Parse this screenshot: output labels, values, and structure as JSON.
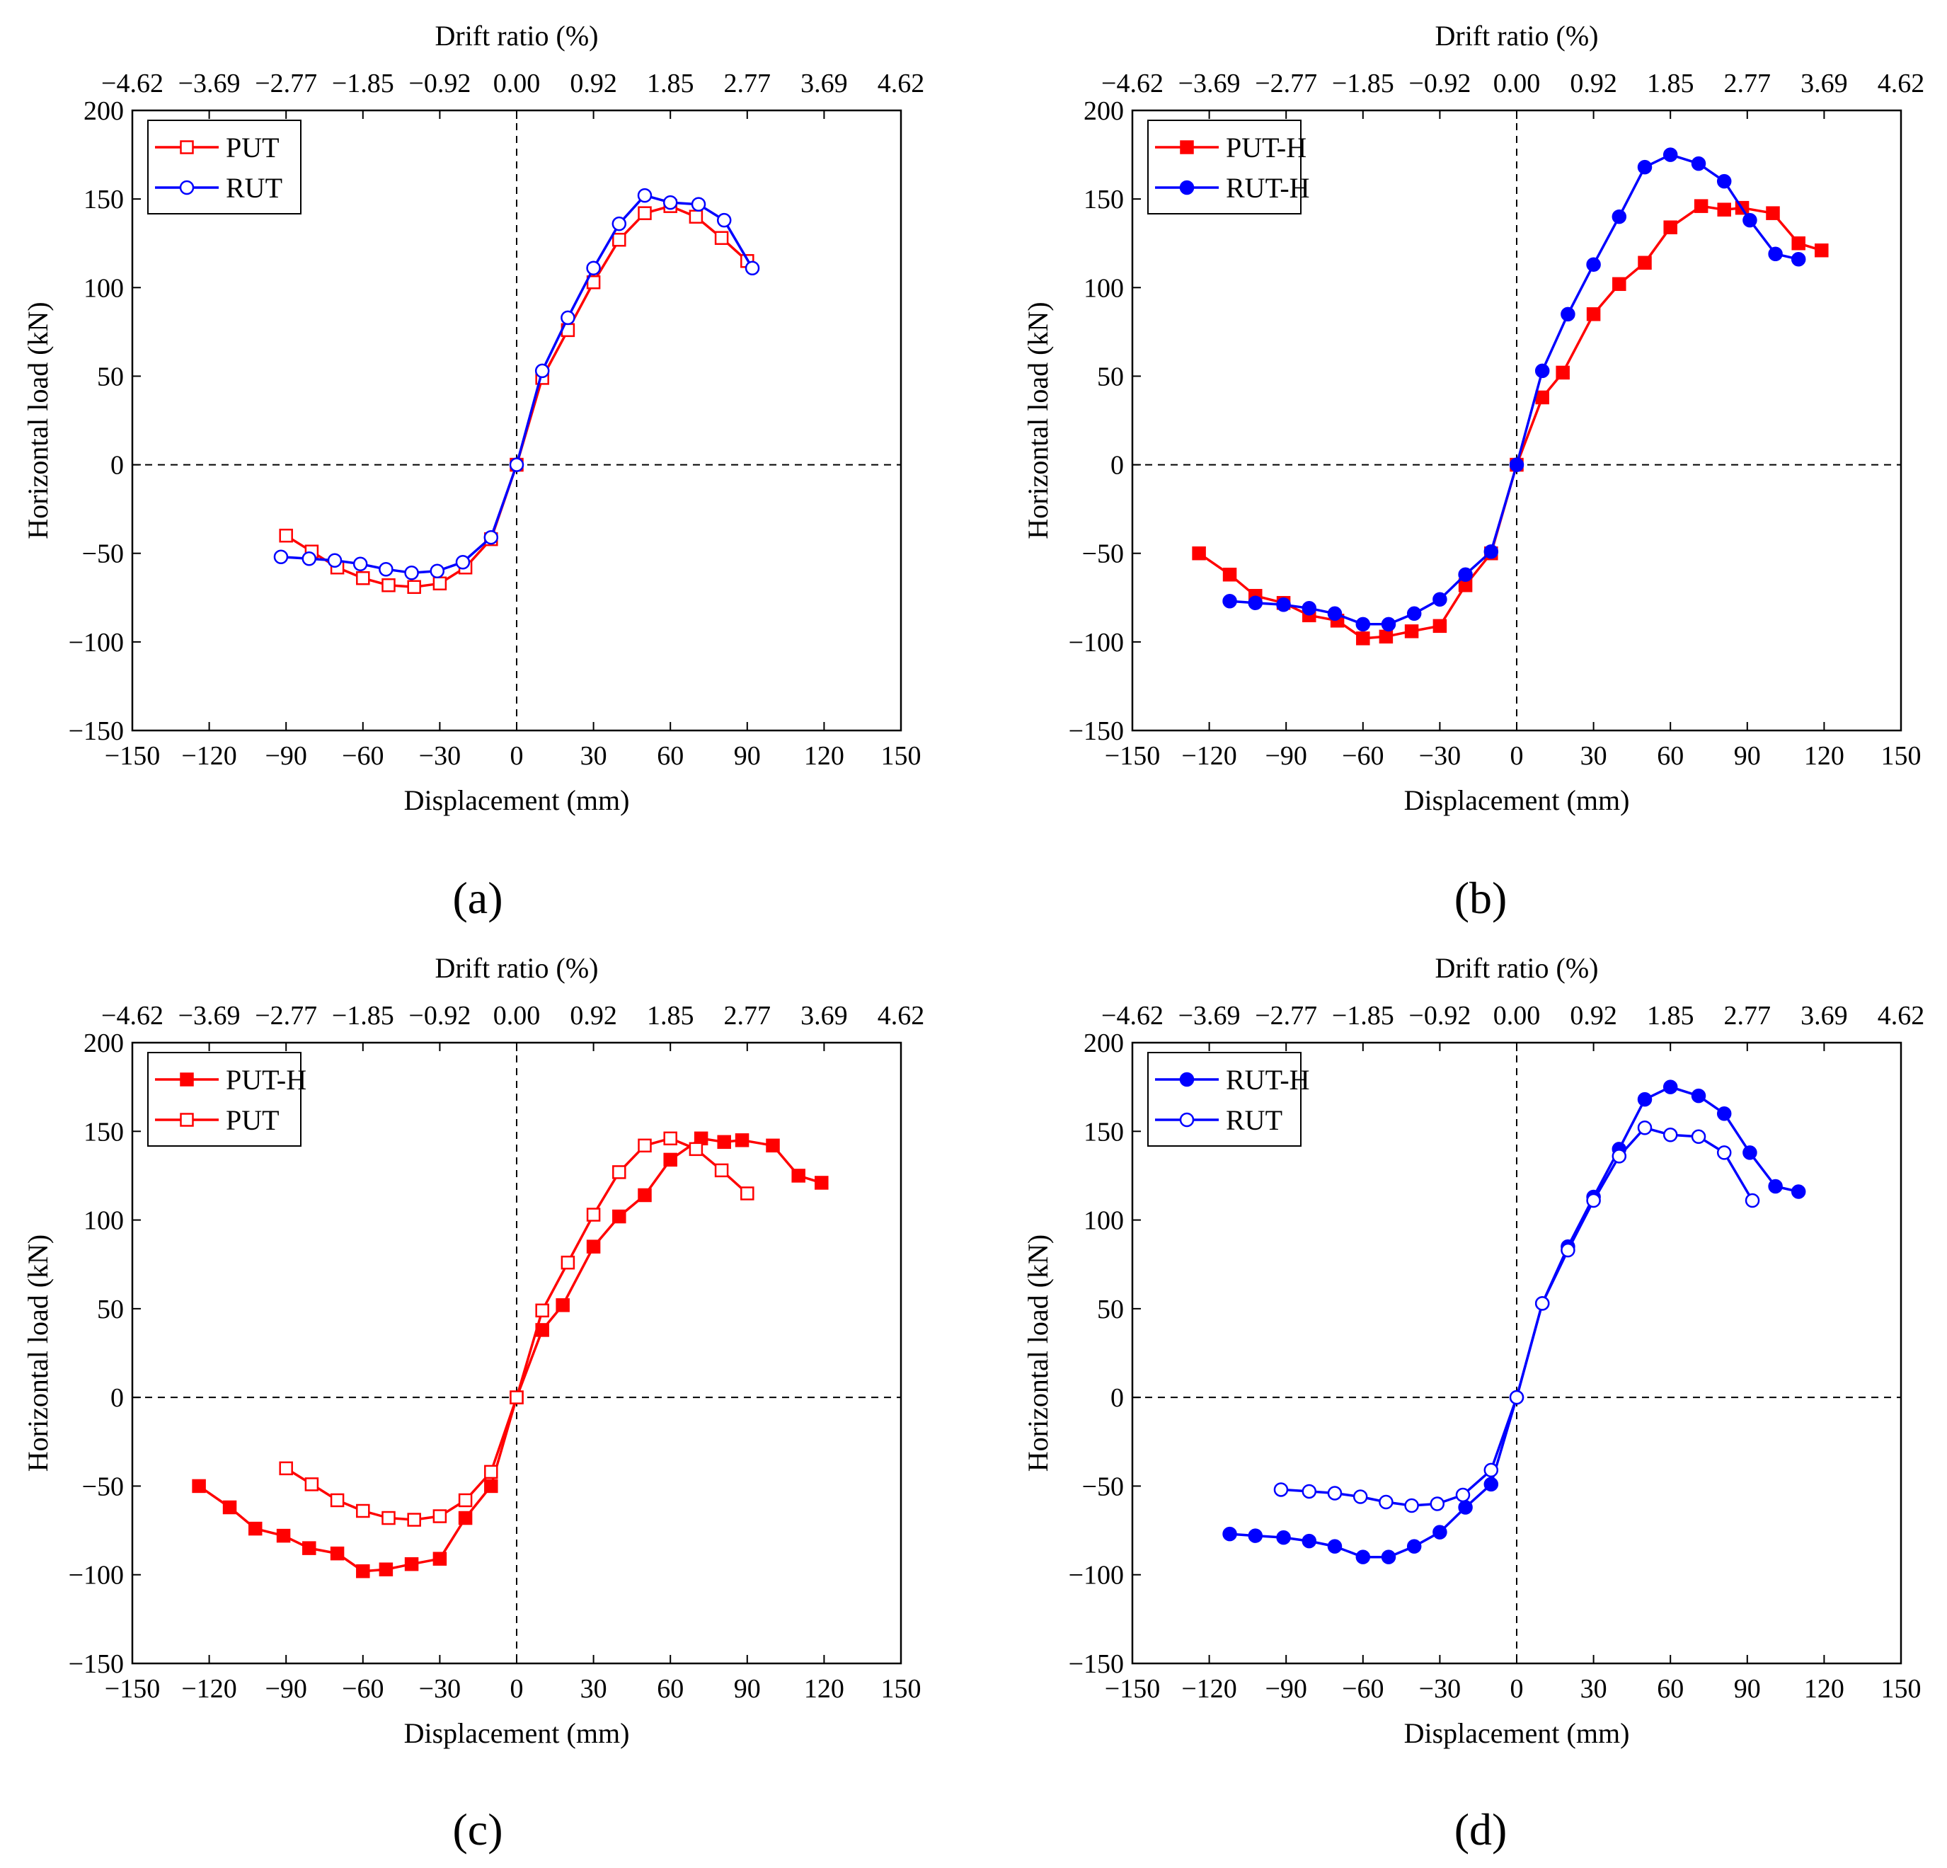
{
  "figure_title": "",
  "colors": {
    "red": "#ff0000",
    "blue": "#0000ff",
    "axis": "#000000"
  },
  "chart_data": [
    {
      "type": "line",
      "panel_label": "(a)",
      "xlabel": "Displacement (mm)",
      "ylabel": "Horizontal load (kN)",
      "top_xlabel": "Drift ratio (%)",
      "xlim": [
        -150,
        150
      ],
      "ylim": [
        -150,
        200
      ],
      "x_ticks": [
        -150,
        -120,
        -90,
        -60,
        -30,
        0,
        30,
        60,
        90,
        120,
        150
      ],
      "x_tick_labels": [
        "−150",
        "−120",
        "−90",
        "−60",
        "−30",
        "0",
        "30",
        "60",
        "90",
        "120",
        "150"
      ],
      "y_ticks": [
        -150,
        -100,
        -50,
        0,
        50,
        100,
        150,
        200
      ],
      "y_tick_labels": [
        "−150",
        "−100",
        "−50",
        "0",
        "50",
        "100",
        "150",
        "200"
      ],
      "top_ticks": [
        -150,
        -120,
        -90,
        -60,
        -30,
        0,
        30,
        60,
        90,
        120,
        150
      ],
      "top_tick_labels": [
        "−4.62",
        "−3.69",
        "−2.77",
        "−1.85",
        "−0.92",
        "0.00",
        "0.92",
        "1.85",
        "2.77",
        "3.69",
        "4.62"
      ],
      "legend_position": "top-left",
      "series": [
        {
          "name": "PUT",
          "color": "#ff0000",
          "marker": "square-open",
          "x": [
            -90,
            -80,
            -70,
            -60,
            -50,
            -40,
            -30,
            -20,
            -10,
            0,
            10,
            20,
            30,
            40,
            50,
            60,
            70,
            80,
            90
          ],
          "y": [
            -40,
            -49,
            -58,
            -64,
            -68,
            -69,
            -67,
            -58,
            -42,
            0,
            49,
            76,
            103,
            127,
            142,
            146,
            140,
            128,
            115
          ]
        },
        {
          "name": "RUT",
          "color": "#0000ff",
          "marker": "circle-open",
          "x": [
            -92,
            -81,
            -71,
            -61,
            -51,
            -41,
            -31,
            -21,
            -10,
            0,
            10,
            20,
            30,
            40,
            50,
            60,
            71,
            81,
            92
          ],
          "y": [
            -52,
            -53,
            -54,
            -56,
            -59,
            -61,
            -60,
            -55,
            -41,
            0,
            53,
            83,
            111,
            136,
            152,
            148,
            147,
            138,
            111
          ]
        }
      ]
    },
    {
      "type": "line",
      "panel_label": "(b)",
      "xlabel": "Displacement (mm)",
      "ylabel": "Horizontal load (kN)",
      "top_xlabel": "Drift ratio (%)",
      "xlim": [
        -150,
        150
      ],
      "ylim": [
        -150,
        200
      ],
      "x_ticks": [
        -150,
        -120,
        -90,
        -60,
        -30,
        0,
        30,
        60,
        90,
        120,
        150
      ],
      "x_tick_labels": [
        "−150",
        "−120",
        "−90",
        "−60",
        "−30",
        "0",
        "30",
        "60",
        "90",
        "120",
        "150"
      ],
      "y_ticks": [
        -150,
        -100,
        -50,
        0,
        50,
        100,
        150,
        200
      ],
      "y_tick_labels": [
        "−150",
        "−100",
        "−50",
        "0",
        "50",
        "100",
        "150",
        "200"
      ],
      "top_ticks": [
        -150,
        -120,
        -90,
        -60,
        -30,
        0,
        30,
        60,
        90,
        120,
        150
      ],
      "top_tick_labels": [
        "−4.62",
        "−3.69",
        "−2.77",
        "−1.85",
        "−0.92",
        "0.00",
        "0.92",
        "1.85",
        "2.77",
        "3.69",
        "4.62"
      ],
      "legend_position": "top-left",
      "series": [
        {
          "name": "PUT-H",
          "color": "#ff0000",
          "marker": "square-filled",
          "x": [
            -124,
            -112,
            -102,
            -91,
            -81,
            -70,
            -60,
            -51,
            -41,
            -30,
            -20,
            -10,
            0,
            10,
            18,
            30,
            40,
            50,
            60,
            72,
            81,
            88,
            100,
            110,
            119
          ],
          "y": [
            -50,
            -62,
            -74,
            -78,
            -85,
            -88,
            -98,
            -97,
            -94,
            -91,
            -68,
            -50,
            0,
            38,
            52,
            85,
            102,
            114,
            134,
            146,
            144,
            145,
            142,
            125,
            121
          ]
        },
        {
          "name": "RUT-H",
          "color": "#0000ff",
          "marker": "circle-filled",
          "x": [
            -112,
            -102,
            -91,
            -81,
            -71,
            -60,
            -50,
            -40,
            -30,
            -20,
            -10,
            0,
            10,
            20,
            30,
            40,
            50,
            60,
            71,
            81,
            91,
            101,
            110
          ],
          "y": [
            -77,
            -78,
            -79,
            -81,
            -84,
            -90,
            -90,
            -84,
            -76,
            -62,
            -49,
            0,
            53,
            85,
            113,
            140,
            168,
            175,
            170,
            160,
            138,
            119,
            116
          ]
        }
      ]
    },
    {
      "type": "line",
      "panel_label": "(c)",
      "xlabel": "Displacement (mm)",
      "ylabel": "Horizontal load (kN)",
      "top_xlabel": "Drift ratio (%)",
      "xlim": [
        -150,
        150
      ],
      "ylim": [
        -150,
        200
      ],
      "x_ticks": [
        -150,
        -120,
        -90,
        -60,
        -30,
        0,
        30,
        60,
        90,
        120,
        150
      ],
      "x_tick_labels": [
        "−150",
        "−120",
        "−90",
        "−60",
        "−30",
        "0",
        "30",
        "60",
        "90",
        "120",
        "150"
      ],
      "y_ticks": [
        -150,
        -100,
        -50,
        0,
        50,
        100,
        150,
        200
      ],
      "y_tick_labels": [
        "−150",
        "−100",
        "−50",
        "0",
        "50",
        "100",
        "150",
        "200"
      ],
      "top_ticks": [
        -150,
        -120,
        -90,
        -60,
        -30,
        0,
        30,
        60,
        90,
        120,
        150
      ],
      "top_tick_labels": [
        "−4.62",
        "−3.69",
        "−2.77",
        "−1.85",
        "−0.92",
        "0.00",
        "0.92",
        "1.85",
        "2.77",
        "3.69",
        "4.62"
      ],
      "legend_position": "top-left",
      "series": [
        {
          "name": "PUT-H",
          "color": "#ff0000",
          "marker": "square-filled",
          "x": [
            -124,
            -112,
            -102,
            -91,
            -81,
            -70,
            -60,
            -51,
            -41,
            -30,
            -20,
            -10,
            0,
            10,
            18,
            30,
            40,
            50,
            60,
            72,
            81,
            88,
            100,
            110,
            119
          ],
          "y": [
            -50,
            -62,
            -74,
            -78,
            -85,
            -88,
            -98,
            -97,
            -94,
            -91,
            -68,
            -50,
            0,
            38,
            52,
            85,
            102,
            114,
            134,
            146,
            144,
            145,
            142,
            125,
            121
          ]
        },
        {
          "name": "PUT",
          "color": "#ff0000",
          "marker": "square-open",
          "x": [
            -90,
            -80,
            -70,
            -60,
            -50,
            -40,
            -30,
            -20,
            -10,
            0,
            10,
            20,
            30,
            40,
            50,
            60,
            70,
            80,
            90
          ],
          "y": [
            -40,
            -49,
            -58,
            -64,
            -68,
            -69,
            -67,
            -58,
            -42,
            0,
            49,
            76,
            103,
            127,
            142,
            146,
            140,
            128,
            115
          ]
        }
      ]
    },
    {
      "type": "line",
      "panel_label": "(d)",
      "xlabel": "Displacement (mm)",
      "ylabel": "Horizontal load (kN)",
      "top_xlabel": "Drift ratio (%)",
      "xlim": [
        -150,
        150
      ],
      "ylim": [
        -150,
        200
      ],
      "x_ticks": [
        -150,
        -120,
        -90,
        -60,
        -30,
        0,
        30,
        60,
        90,
        120,
        150
      ],
      "x_tick_labels": [
        "−150",
        "−120",
        "−90",
        "−60",
        "−30",
        "0",
        "30",
        "60",
        "90",
        "120",
        "150"
      ],
      "y_ticks": [
        -150,
        -100,
        -50,
        0,
        50,
        100,
        150,
        200
      ],
      "y_tick_labels": [
        "−150",
        "−100",
        "−50",
        "0",
        "50",
        "100",
        "150",
        "200"
      ],
      "top_ticks": [
        -150,
        -120,
        -90,
        -60,
        -30,
        0,
        30,
        60,
        90,
        120,
        150
      ],
      "top_tick_labels": [
        "−4.62",
        "−3.69",
        "−2.77",
        "−1.85",
        "−0.92",
        "0.00",
        "0.92",
        "1.85",
        "2.77",
        "3.69",
        "4.62"
      ],
      "legend_position": "top-left",
      "series": [
        {
          "name": "RUT-H",
          "color": "#0000ff",
          "marker": "circle-filled",
          "x": [
            -112,
            -102,
            -91,
            -81,
            -71,
            -60,
            -50,
            -40,
            -30,
            -20,
            -10,
            0,
            10,
            20,
            30,
            40,
            50,
            60,
            71,
            81,
            91,
            101,
            110
          ],
          "y": [
            -77,
            -78,
            -79,
            -81,
            -84,
            -90,
            -90,
            -84,
            -76,
            -62,
            -49,
            0,
            53,
            85,
            113,
            140,
            168,
            175,
            170,
            160,
            138,
            119,
            116
          ]
        },
        {
          "name": "RUT",
          "color": "#0000ff",
          "marker": "circle-open",
          "x": [
            -92,
            -81,
            -71,
            -61,
            -51,
            -41,
            -31,
            -21,
            -10,
            0,
            10,
            20,
            30,
            40,
            50,
            60,
            71,
            81,
            92
          ],
          "y": [
            -52,
            -53,
            -54,
            -56,
            -59,
            -61,
            -60,
            -55,
            -41,
            0,
            53,
            83,
            111,
            136,
            152,
            148,
            147,
            138,
            111
          ]
        }
      ]
    }
  ]
}
